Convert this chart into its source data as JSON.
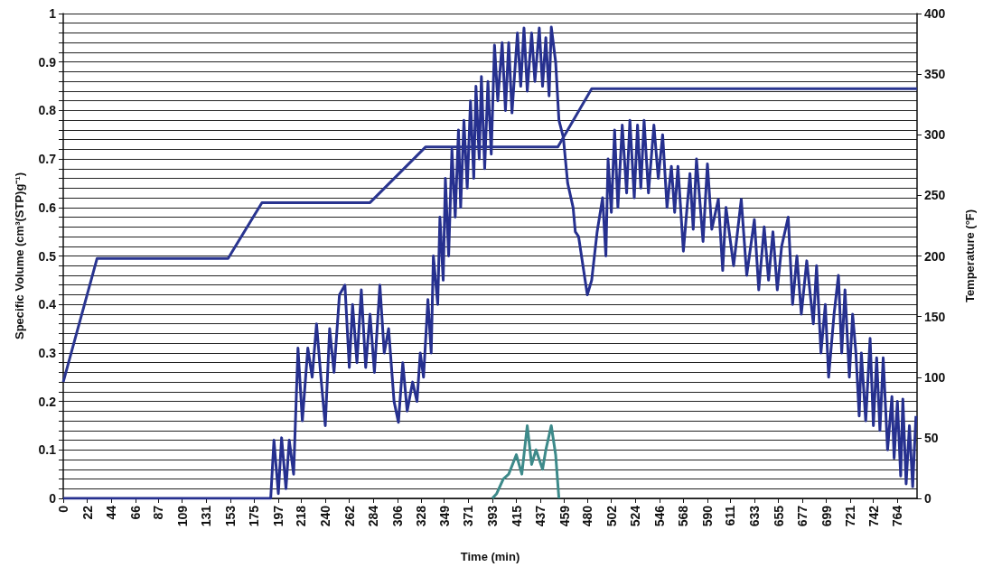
{
  "chart_data": {
    "type": "line",
    "xlabel": "Time (min)",
    "ylabel": "Specific Volume (cm³(STP)g⁻¹)",
    "y2label": "Temperature (°F)",
    "xlim": [
      0,
      782
    ],
    "xticks": [
      0,
      22,
      44,
      66,
      87,
      109,
      131,
      153,
      175,
      197,
      218,
      240,
      262,
      284,
      306,
      328,
      349,
      371,
      393,
      415,
      437,
      459,
      480,
      502,
      524,
      546,
      568,
      590,
      611,
      633,
      655,
      677,
      699,
      721,
      742,
      764
    ],
    "ylim": [
      0,
      1
    ],
    "yticks": [
      0,
      {
        "value": 0.02,
        "label": null
      },
      {
        "value": 0.04,
        "label": null
      },
      {
        "value": 0.06,
        "label": null
      },
      {
        "value": 0.08,
        "label": null
      },
      0.1,
      {
        "value": 0.12,
        "label": null
      },
      {
        "value": 0.14,
        "label": null
      },
      {
        "value": 0.16,
        "label": null
      },
      {
        "value": 0.18,
        "label": null
      },
      0.2,
      {
        "value": 0.22,
        "label": null
      },
      {
        "value": 0.24,
        "label": null
      },
      {
        "value": 0.26,
        "label": null
      },
      {
        "value": 0.28,
        "label": null
      },
      0.3,
      {
        "value": 0.32,
        "label": null
      },
      {
        "value": 0.34,
        "label": null
      },
      {
        "value": 0.36,
        "label": null
      },
      {
        "value": 0.38,
        "label": null
      },
      0.4,
      {
        "value": 0.42,
        "label": null
      },
      {
        "value": 0.44,
        "label": null
      },
      {
        "value": 0.46,
        "label": null
      },
      {
        "value": 0.48,
        "label": null
      },
      0.5,
      {
        "value": 0.52,
        "label": null
      },
      {
        "value": 0.54,
        "label": null
      },
      {
        "value": 0.56,
        "label": null
      },
      {
        "value": 0.58,
        "label": null
      },
      0.6,
      {
        "value": 0.62,
        "label": null
      },
      {
        "value": 0.64,
        "label": null
      },
      {
        "value": 0.66,
        "label": null
      },
      {
        "value": 0.68,
        "label": null
      },
      0.7,
      {
        "value": 0.72,
        "label": null
      },
      {
        "value": 0.74,
        "label": null
      },
      {
        "value": 0.76,
        "label": null
      },
      {
        "value": 0.78,
        "label": null
      },
      0.8,
      {
        "value": 0.82,
        "label": null
      },
      {
        "value": 0.84,
        "label": null
      },
      {
        "value": 0.86,
        "label": null
      },
      {
        "value": 0.88,
        "label": null
      },
      0.9,
      {
        "value": 0.92,
        "label": null
      },
      {
        "value": 0.94,
        "label": null
      },
      {
        "value": 0.96,
        "label": null
      },
      {
        "value": 0.98,
        "label": null
      },
      1
    ],
    "y2lim": [
      0,
      400
    ],
    "y2ticks": [
      0,
      50,
      100,
      150,
      200,
      250,
      300,
      350,
      400
    ],
    "grid": "y",
    "marker": "none",
    "line_style": "solid",
    "series": [
      {
        "color": "#26308f",
        "x": [
          0,
          190,
          193,
          197,
          200,
          204,
          207,
          211,
          215,
          219,
          224,
          228,
          232,
          236,
          240,
          244,
          248,
          253,
          258,
          262,
          265,
          269,
          273,
          277,
          281,
          285,
          290,
          294,
          298,
          303,
          307,
          311,
          315,
          320,
          324,
          327,
          330,
          334,
          337,
          339,
          343,
          345,
          348,
          350,
          353,
          356,
          359,
          362,
          364,
          367,
          370,
          373,
          376,
          378,
          381,
          383,
          386,
          389,
          392,
          395,
          398,
          402,
          405,
          408,
          411,
          416,
          419,
          422,
          425,
          429,
          432,
          436,
          439,
          442,
          445,
          447,
          451,
          454,
          458,
          462,
          467,
          469,
          472,
          476,
          480,
          484,
          489,
          494,
          497,
          499,
          502,
          505,
          508,
          512,
          516,
          519,
          523,
          526,
          529,
          532,
          536,
          541,
          545,
          549,
          553,
          557,
          560,
          563,
          568,
          574,
          577,
          580,
          586,
          590,
          594,
          600,
          604,
          607,
          614,
          621,
          626,
          633,
          637,
          642,
          646,
          650,
          654,
          658,
          664,
          668,
          672,
          676,
          681,
          687,
          690,
          694,
          698,
          701,
          706,
          710,
          713,
          716,
          720,
          723,
          726,
          729,
          731,
          735,
          739,
          742,
          745,
          748,
          751,
          755,
          759,
          761,
          764,
          767,
          769,
          772,
          775,
          778,
          781
        ],
        "values": [
          0,
          0,
          0.12,
          0.01,
          0.125,
          0.02,
          0.12,
          0.05,
          0.31,
          0.16,
          0.31,
          0.25,
          0.36,
          0.25,
          0.15,
          0.35,
          0.26,
          0.42,
          0.44,
          0.27,
          0.4,
          0.28,
          0.43,
          0.27,
          0.38,
          0.26,
          0.44,
          0.3,
          0.35,
          0.2,
          0.157,
          0.28,
          0.18,
          0.24,
          0.2,
          0.3,
          0.25,
          0.41,
          0.3,
          0.5,
          0.4,
          0.58,
          0.45,
          0.66,
          0.5,
          0.72,
          0.58,
          0.76,
          0.6,
          0.78,
          0.64,
          0.82,
          0.66,
          0.85,
          0.7,
          0.87,
          0.68,
          0.86,
          0.71,
          0.935,
          0.82,
          0.94,
          0.8,
          0.94,
          0.795,
          0.96,
          0.85,
          0.97,
          0.84,
          0.96,
          0.86,
          0.97,
          0.85,
          0.95,
          0.83,
          0.972,
          0.9,
          0.78,
          0.745,
          0.65,
          0.6,
          0.55,
          0.54,
          0.48,
          0.42,
          0.45,
          0.55,
          0.62,
          0.5,
          0.7,
          0.59,
          0.76,
          0.6,
          0.77,
          0.63,
          0.78,
          0.62,
          0.77,
          0.64,
          0.78,
          0.63,
          0.77,
          0.66,
          0.75,
          0.6,
          0.685,
          0.59,
          0.685,
          0.51,
          0.67,
          0.555,
          0.7,
          0.53,
          0.69,
          0.555,
          0.617,
          0.47,
          0.6,
          0.48,
          0.617,
          0.46,
          0.575,
          0.43,
          0.56,
          0.45,
          0.55,
          0.43,
          0.52,
          0.58,
          0.4,
          0.5,
          0.38,
          0.49,
          0.36,
          0.48,
          0.3,
          0.4,
          0.25,
          0.38,
          0.46,
          0.3,
          0.43,
          0.25,
          0.38,
          0.3,
          0.17,
          0.3,
          0.16,
          0.33,
          0.15,
          0.29,
          0.14,
          0.29,
          0.1,
          0.21,
          0.083,
          0.2,
          0.046,
          0.205,
          0.03,
          0.15,
          0.024,
          0.17
        ]
      },
      {
        "color": "#2a3590",
        "axis": "y2",
        "x": [
          0,
          31,
          151,
          182,
          281,
          332,
          453,
          484,
          782
        ],
        "values": [
          96,
          198,
          198,
          244,
          244,
          290,
          290,
          338,
          338
        ]
      },
      {
        "color": "#3d8a8a",
        "x": [
          393,
          397,
          403,
          408,
          415,
          420,
          425,
          429,
          433,
          439,
          442,
          447,
          451,
          454
        ],
        "values": [
          0,
          0.01,
          0.04,
          0.05,
          0.09,
          0.05,
          0.15,
          0.07,
          0.1,
          0.06,
          0.1,
          0.15,
          0.09,
          0
        ]
      }
    ]
  }
}
